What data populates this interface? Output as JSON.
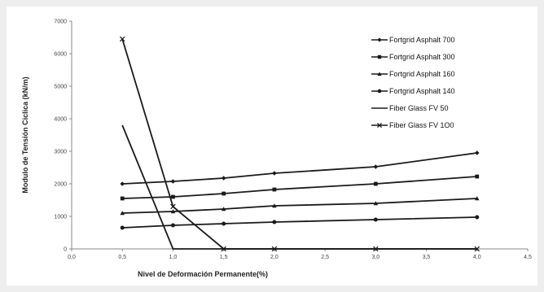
{
  "chart_data": {
    "type": "line",
    "title": "",
    "xlabel": "Nivel de Deformación Permanente(%)",
    "ylabel": "Modulo de Tensión Ciclica (kN/m)",
    "xlim": [
      0,
      4.5
    ],
    "ylim": [
      0,
      7000
    ],
    "x_ticks": [
      "0,0",
      "0,5",
      "1,0",
      "1,5",
      "2,0",
      "2,5",
      "3,0",
      "3,5",
      "4,0",
      "4,5"
    ],
    "y_ticks": [
      "0",
      "1000",
      "2000",
      "3000",
      "4000",
      "5000",
      "6000",
      "7000"
    ],
    "grid": false,
    "legend_position": "top-right",
    "line_color": "#1a1a1a",
    "series": [
      {
        "name": "Fortgrid Asphalt 700",
        "marker": "diamond",
        "x": [
          0.5,
          1.0,
          1.5,
          2.0,
          3.0,
          4.0
        ],
        "values": [
          2000,
          2075,
          2175,
          2325,
          2525,
          2950
        ]
      },
      {
        "name": "Fortgrid Asphalt 300",
        "marker": "square",
        "x": [
          0.5,
          1.0,
          1.5,
          2.0,
          3.0,
          4.0
        ],
        "values": [
          1550,
          1600,
          1700,
          1825,
          2000,
          2225
        ]
      },
      {
        "name": "Fortgrid Asphalt 160",
        "marker": "triangle",
        "x": [
          0.5,
          1.0,
          1.5,
          2.0,
          3.0,
          4.0
        ],
        "values": [
          1100,
          1150,
          1225,
          1325,
          1400,
          1550
        ]
      },
      {
        "name": "Fortgrid Asphalt 140",
        "marker": "circle",
        "x": [
          0.5,
          1.0,
          1.5,
          2.0,
          3.0,
          4.0
        ],
        "values": [
          650,
          725,
          775,
          825,
          900,
          975
        ]
      },
      {
        "name": "Fiber Glass FV 50",
        "marker": "none",
        "x": [
          0.5,
          1.0,
          1.5,
          2.0,
          3.0,
          4.0
        ],
        "values": [
          3800,
          0,
          0,
          0,
          0,
          0
        ]
      },
      {
        "name": "Fiber Glass FV 1O0",
        "marker": "x",
        "x": [
          0.5,
          1.0,
          1.5,
          2.0,
          3.0,
          4.0
        ],
        "values": [
          6450,
          1300,
          0,
          0,
          0,
          0
        ]
      }
    ]
  }
}
